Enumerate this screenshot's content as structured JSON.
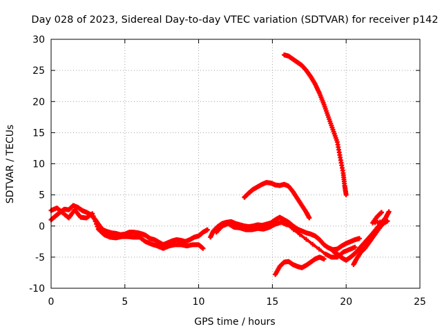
{
  "chart_data": {
    "type": "scatter",
    "title": "Day 028 of 2023, Sidereal Day-to-day VTEC variation (SDTVAR) for receiver p142",
    "xlabel": "GPS time / hours",
    "ylabel": "SDTVAR / TECUs",
    "xlim": [
      0,
      25
    ],
    "ylim": [
      -10,
      30
    ],
    "xticks": [
      0,
      5,
      10,
      15,
      20,
      25
    ],
    "yticks": [
      -10,
      -5,
      0,
      5,
      10,
      15,
      20,
      25,
      30
    ],
    "grid": true,
    "marker": "+",
    "color": "#ff0000",
    "series": [
      {
        "name": "track-1",
        "points": [
          [
            0.0,
            1.0
          ],
          [
            0.3,
            1.6
          ],
          [
            0.6,
            2.2
          ],
          [
            0.9,
            2.7
          ],
          [
            1.2,
            2.6
          ],
          [
            1.5,
            3.3
          ],
          [
            1.8,
            3.0
          ],
          [
            2.1,
            2.5
          ],
          [
            2.4,
            2.2
          ],
          [
            2.7,
            1.8
          ],
          [
            3.0,
            1.0
          ],
          [
            3.2,
            0.3
          ],
          [
            3.5,
            -0.6
          ],
          [
            3.8,
            -0.9
          ],
          [
            4.1,
            -1.1
          ],
          [
            4.4,
            -1.2
          ],
          [
            4.7,
            -1.4
          ],
          [
            5.0,
            -1.3
          ],
          [
            5.3,
            -1.0
          ],
          [
            5.6,
            -1.0
          ],
          [
            5.9,
            -1.1
          ],
          [
            6.2,
            -1.3
          ],
          [
            6.4,
            -1.5
          ],
          [
            6.7,
            -2.0
          ],
          [
            7.0,
            -2.2
          ],
          [
            7.3,
            -2.6
          ],
          [
            7.6,
            -3.0
          ],
          [
            7.9,
            -2.7
          ],
          [
            8.2,
            -2.4
          ],
          [
            8.5,
            -2.2
          ],
          [
            8.8,
            -2.3
          ],
          [
            9.1,
            -2.5
          ],
          [
            9.4,
            -2.2
          ],
          [
            9.7,
            -1.8
          ],
          [
            10.0,
            -1.6
          ],
          [
            10.3,
            -1.0
          ],
          [
            10.6,
            -0.6
          ]
        ]
      },
      {
        "name": "track-1-spread",
        "points": [
          [
            0.0,
            2.5
          ],
          [
            0.4,
            2.9
          ],
          [
            0.8,
            2.1
          ],
          [
            1.2,
            1.3
          ],
          [
            1.6,
            2.6
          ],
          [
            2.0,
            1.4
          ],
          [
            2.4,
            1.3
          ],
          [
            2.8,
            2.0
          ],
          [
            3.2,
            -0.5
          ],
          [
            3.6,
            -1.4
          ],
          [
            4.0,
            -1.8
          ],
          [
            4.4,
            -1.9
          ],
          [
            4.8,
            -1.7
          ],
          [
            5.2,
            -1.7
          ],
          [
            5.6,
            -1.8
          ],
          [
            6.0,
            -1.8
          ],
          [
            6.4,
            -2.5
          ],
          [
            6.8,
            -2.9
          ],
          [
            7.2,
            -3.2
          ],
          [
            7.6,
            -3.6
          ],
          [
            8.0,
            -3.2
          ],
          [
            8.4,
            -3.0
          ],
          [
            8.8,
            -3.0
          ],
          [
            9.2,
            -3.2
          ],
          [
            9.6,
            -3.0
          ],
          [
            10.0,
            -3.0
          ],
          [
            10.3,
            -3.6
          ]
        ]
      },
      {
        "name": "track-2",
        "points": [
          [
            10.8,
            -1.8
          ],
          [
            11.0,
            -0.8
          ],
          [
            11.3,
            -0.1
          ],
          [
            11.6,
            0.4
          ],
          [
            11.9,
            0.6
          ],
          [
            12.2,
            0.7
          ],
          [
            12.5,
            0.4
          ],
          [
            12.8,
            0.2
          ],
          [
            13.1,
            0.0
          ],
          [
            13.4,
            -0.1
          ],
          [
            13.7,
            0.0
          ],
          [
            14.0,
            0.2
          ],
          [
            14.3,
            0.1
          ],
          [
            14.6,
            0.3
          ],
          [
            14.9,
            0.5
          ],
          [
            15.2,
            1.0
          ],
          [
            15.5,
            1.4
          ],
          [
            15.8,
            1.0
          ],
          [
            16.1,
            0.6
          ],
          [
            16.4,
            0.0
          ],
          [
            16.7,
            -0.5
          ],
          [
            17.0,
            -0.8
          ],
          [
            17.3,
            -1.1
          ],
          [
            17.6,
            -1.3
          ],
          [
            17.9,
            -1.6
          ],
          [
            18.2,
            -2.2
          ],
          [
            18.5,
            -3.0
          ],
          [
            18.8,
            -3.5
          ],
          [
            19.1,
            -3.8
          ],
          [
            19.4,
            -3.7
          ],
          [
            19.7,
            -3.2
          ],
          [
            20.0,
            -2.8
          ],
          [
            20.3,
            -2.5
          ],
          [
            20.6,
            -2.2
          ],
          [
            20.9,
            -2.0
          ]
        ]
      },
      {
        "name": "track-2-spread",
        "points": [
          [
            11.2,
            -1.0
          ],
          [
            11.6,
            0.0
          ],
          [
            12.0,
            0.4
          ],
          [
            12.4,
            -0.2
          ],
          [
            12.8,
            -0.3
          ],
          [
            13.2,
            -0.6
          ],
          [
            13.6,
            -0.6
          ],
          [
            14.0,
            -0.4
          ],
          [
            14.4,
            -0.5
          ],
          [
            14.8,
            -0.2
          ],
          [
            15.2,
            0.3
          ],
          [
            15.6,
            0.6
          ],
          [
            16.0,
            0.2
          ],
          [
            18.6,
            -4.5
          ],
          [
            19.0,
            -5.0
          ],
          [
            19.4,
            -5.0
          ],
          [
            19.8,
            -4.2
          ],
          [
            20.2,
            -3.8
          ],
          [
            20.6,
            -3.4
          ]
        ]
      },
      {
        "name": "track-3",
        "points": [
          [
            13.1,
            4.6
          ],
          [
            13.4,
            5.3
          ],
          [
            13.7,
            5.9
          ],
          [
            14.0,
            6.3
          ],
          [
            14.3,
            6.7
          ],
          [
            14.6,
            7.0
          ],
          [
            14.9,
            6.9
          ],
          [
            15.2,
            6.6
          ],
          [
            15.5,
            6.5
          ],
          [
            15.8,
            6.7
          ],
          [
            16.1,
            6.4
          ],
          [
            16.4,
            5.5
          ],
          [
            16.7,
            4.4
          ],
          [
            17.0,
            3.3
          ],
          [
            17.3,
            2.2
          ],
          [
            17.5,
            1.3
          ]
        ]
      },
      {
        "name": "track-4",
        "points": [
          [
            15.8,
            27.5
          ],
          [
            16.1,
            27.3
          ],
          [
            16.4,
            26.8
          ],
          [
            16.7,
            26.3
          ],
          [
            17.0,
            25.8
          ],
          [
            17.3,
            25.0
          ],
          [
            17.6,
            24.0
          ],
          [
            17.9,
            22.8
          ],
          [
            18.2,
            21.3
          ],
          [
            18.5,
            19.5
          ],
          [
            18.8,
            17.5
          ],
          [
            19.1,
            15.5
          ],
          [
            19.4,
            13.5
          ],
          [
            19.6,
            11.0
          ],
          [
            19.8,
            8.5
          ],
          [
            19.9,
            6.5
          ],
          [
            20.0,
            5.0
          ]
        ]
      },
      {
        "name": "track-5",
        "points": [
          [
            15.2,
            -7.8
          ],
          [
            15.5,
            -6.5
          ],
          [
            15.8,
            -5.8
          ],
          [
            16.1,
            -5.7
          ],
          [
            16.4,
            -6.2
          ],
          [
            16.7,
            -6.5
          ],
          [
            17.0,
            -6.7
          ],
          [
            17.3,
            -6.3
          ],
          [
            17.6,
            -5.8
          ],
          [
            17.9,
            -5.3
          ],
          [
            18.2,
            -5.0
          ],
          [
            18.5,
            -5.3
          ]
        ]
      },
      {
        "name": "track-6",
        "points": [
          [
            19.1,
            -4.0
          ],
          [
            19.4,
            -4.5
          ],
          [
            19.7,
            -5.1
          ],
          [
            20.0,
            -5.5
          ],
          [
            20.3,
            -5.0
          ],
          [
            20.6,
            -4.4
          ],
          [
            20.9,
            -3.6
          ],
          [
            21.2,
            -2.8
          ],
          [
            21.5,
            -2.0
          ],
          [
            21.8,
            -1.2
          ],
          [
            22.1,
            -0.3
          ],
          [
            22.4,
            0.5
          ],
          [
            22.7,
            1.4
          ],
          [
            22.9,
            2.3
          ]
        ]
      },
      {
        "name": "track-6-spread",
        "points": [
          [
            20.5,
            -6.2
          ],
          [
            20.7,
            -5.3
          ],
          [
            21.0,
            -4.2
          ],
          [
            21.3,
            -3.5
          ],
          [
            21.6,
            -2.5
          ],
          [
            21.9,
            -1.5
          ],
          [
            22.2,
            -0.5
          ],
          [
            22.5,
            0.4
          ],
          [
            22.8,
            0.8
          ],
          [
            21.8,
            0.5
          ],
          [
            22.1,
            1.5
          ],
          [
            22.4,
            2.2
          ]
        ]
      }
    ]
  }
}
